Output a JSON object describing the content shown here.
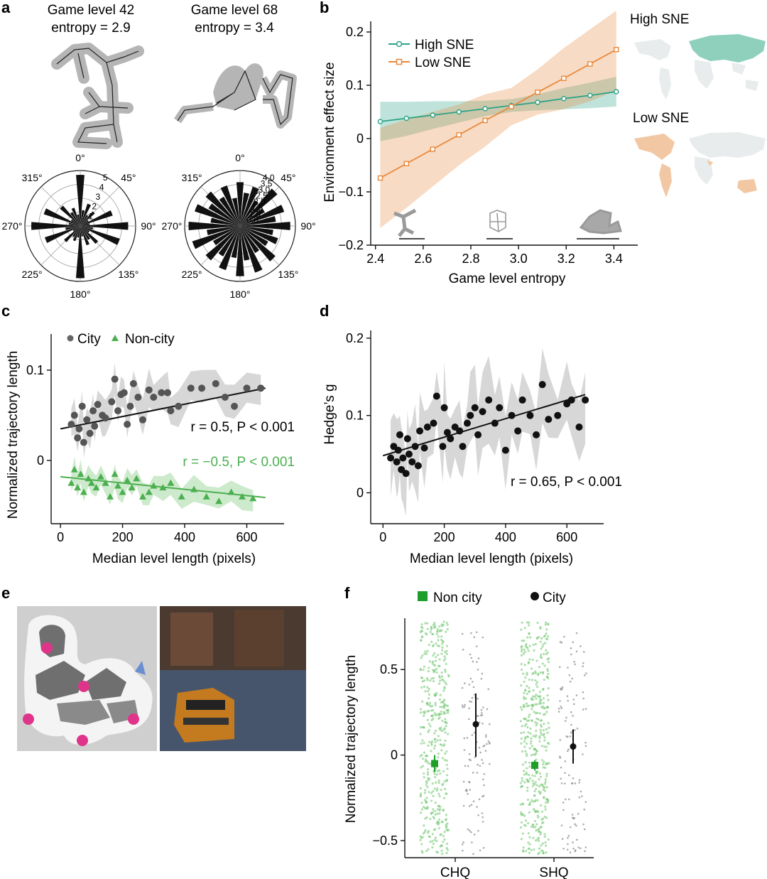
{
  "panel_labels": {
    "a": "a",
    "b": "b",
    "c": "c",
    "d": "d",
    "e": "e",
    "f": "f"
  },
  "colors": {
    "high_sne": "#2aa385",
    "low_sne": "#e8873a",
    "city": "#555555",
    "noncity": "#4caf50",
    "f_noncity": "#1f9e2a",
    "black": "#111111"
  },
  "panel_a": {
    "left": {
      "title1": "Game level 42",
      "title2": "entropy = 2.9",
      "radial_ticks": [
        "1",
        "2",
        "3",
        "4",
        "5"
      ],
      "bins": [
        4.8,
        1.5,
        2.2,
        1.2,
        1.8,
        0.9,
        3.2,
        0.9,
        4.5,
        1.2,
        3.9,
        1.0,
        2.2,
        1.5,
        1.9,
        1.0,
        4.9,
        1.1,
        1.5,
        1.2,
        2.0,
        0.8,
        3.5,
        1.4,
        4.6,
        1.1,
        3.6,
        1.0,
        2.5,
        1.5,
        1.8,
        1.1
      ]
    },
    "right": {
      "title1": "Game level 68",
      "title2": "entropy = 3.4",
      "radial_ticks": [
        "0.5",
        "1.0",
        "1.5",
        "2.0",
        "2.5",
        "3.0",
        "3.5",
        "4.0"
      ],
      "bins": [
        3.4,
        2.6,
        3.2,
        2.3,
        3.8,
        2.2,
        3.6,
        2.8,
        3.9,
        2.6,
        3.1,
        2.5,
        3.6,
        2.4,
        3.8,
        2.7,
        3.9,
        2.5,
        3.6,
        2.7,
        3.5,
        2.4,
        3.9,
        2.6,
        4.0,
        2.3,
        3.7,
        2.8,
        3.5,
        2.6,
        3.3,
        2.2
      ]
    },
    "angle_labels": [
      "0°",
      "45°",
      "90°",
      "135°",
      "180°",
      "225°",
      "270°",
      "315°"
    ]
  },
  "panel_b": {
    "legend": [
      "High SNE",
      "Low SNE"
    ],
    "map_labels": [
      "High SNE",
      "Low SNE"
    ],
    "chart_data": {
      "type": "line",
      "title": "",
      "xlabel": "Game level entropy",
      "ylabel": "Environment effect size",
      "xlim": [
        2.38,
        3.5
      ],
      "ylim": [
        -0.2,
        0.22
      ],
      "xticks": [
        "2.4",
        "2.6",
        "2.8",
        "3.0",
        "3.2",
        "3.4"
      ],
      "yticks": [
        "−0.2",
        "−0.1",
        "0",
        "0.1",
        "0.2"
      ],
      "x": [
        2.42,
        2.53,
        2.64,
        2.75,
        2.86,
        2.97,
        3.08,
        3.19,
        3.3,
        3.41
      ],
      "series": [
        {
          "name": "High SNE",
          "values": [
            0.032,
            0.038,
            0.044,
            0.05,
            0.056,
            0.062,
            0.068,
            0.075,
            0.081,
            0.088
          ],
          "ci_low": [
            -0.005,
            0.005,
            0.018,
            0.03,
            0.042,
            0.05,
            0.053,
            0.055,
            0.057,
            0.06
          ],
          "ci_high": [
            0.069,
            0.069,
            0.07,
            0.07,
            0.071,
            0.074,
            0.083,
            0.095,
            0.105,
            0.116
          ]
        },
        {
          "name": "Low SNE",
          "values": [
            -0.074,
            -0.047,
            -0.02,
            0.007,
            0.034,
            0.06,
            0.087,
            0.113,
            0.14,
            0.167
          ],
          "ci_low": [
            -0.168,
            -0.13,
            -0.09,
            -0.05,
            -0.015,
            0.025,
            0.045,
            0.055,
            0.07,
            0.09
          ],
          "ci_high": [
            0.02,
            0.036,
            0.05,
            0.064,
            0.083,
            0.095,
            0.13,
            0.17,
            0.205,
            0.24
          ]
        }
      ]
    }
  },
  "panel_c": {
    "legend": [
      "City",
      "Non-city"
    ],
    "stat_city": "r = 0.5, P < 0.001",
    "stat_noncity": "r = −0.5, P < 0.001",
    "chart_data": {
      "type": "scatter",
      "xlabel": "Median level length (pixels)",
      "ylabel": "Normalized trajectory length",
      "xlim": [
        -30,
        720
      ],
      "ylim": [
        -0.07,
        0.14
      ],
      "xticks": [
        "0",
        "200",
        "400",
        "600"
      ],
      "yticks": [
        "0",
        "0.1"
      ],
      "fit_city": {
        "x": [
          0,
          660
        ],
        "y": [
          0.035,
          0.08
        ]
      },
      "fit_noncity": {
        "x": [
          0,
          660
        ],
        "y": [
          -0.018,
          -0.041
        ]
      },
      "city": [
        [
          35,
          0.04
        ],
        [
          45,
          0.05
        ],
        [
          55,
          0.025
        ],
        [
          60,
          0.035
        ],
        [
          70,
          0.06
        ],
        [
          75,
          0.02
        ],
        [
          85,
          0.045
        ],
        [
          95,
          0.03
        ],
        [
          105,
          0.055
        ],
        [
          110,
          0.038
        ],
        [
          120,
          0.062
        ],
        [
          135,
          0.05
        ],
        [
          145,
          0.047
        ],
        [
          165,
          0.065
        ],
        [
          175,
          0.09
        ],
        [
          185,
          0.055
        ],
        [
          195,
          0.073
        ],
        [
          205,
          0.075
        ],
        [
          215,
          0.04
        ],
        [
          225,
          0.06
        ],
        [
          235,
          0.085
        ],
        [
          250,
          0.07
        ],
        [
          265,
          0.045
        ],
        [
          285,
          0.078
        ],
        [
          300,
          0.07
        ],
        [
          325,
          0.075
        ],
        [
          345,
          0.075
        ],
        [
          355,
          0.055
        ],
        [
          380,
          0.06
        ],
        [
          420,
          0.08
        ],
        [
          455,
          0.08
        ],
        [
          500,
          0.085
        ],
        [
          530,
          0.07
        ],
        [
          560,
          0.06
        ],
        [
          600,
          0.08
        ],
        [
          645,
          0.08
        ]
      ],
      "noncity": [
        [
          35,
          -0.025
        ],
        [
          45,
          -0.01
        ],
        [
          55,
          -0.03
        ],
        [
          65,
          -0.015
        ],
        [
          75,
          -0.035
        ],
        [
          90,
          -0.02
        ],
        [
          100,
          -0.025
        ],
        [
          115,
          -0.03
        ],
        [
          130,
          -0.018
        ],
        [
          145,
          -0.025
        ],
        [
          160,
          -0.04
        ],
        [
          175,
          -0.015
        ],
        [
          185,
          -0.028
        ],
        [
          200,
          -0.035
        ],
        [
          215,
          -0.022
        ],
        [
          230,
          -0.03
        ],
        [
          245,
          -0.02
        ],
        [
          265,
          -0.04
        ],
        [
          285,
          -0.035
        ],
        [
          300,
          -0.028
        ],
        [
          330,
          -0.03
        ],
        [
          355,
          -0.025
        ],
        [
          390,
          -0.04
        ],
        [
          430,
          -0.032
        ],
        [
          470,
          -0.04
        ],
        [
          510,
          -0.045
        ],
        [
          550,
          -0.035
        ],
        [
          585,
          -0.04
        ],
        [
          620,
          -0.042
        ]
      ]
    }
  },
  "panel_d": {
    "stat": "r = 0.65, P < 0.001",
    "chart_data": {
      "type": "scatter",
      "xlabel": "Median level length (pixels)",
      "ylabel": "Hedge’s g",
      "xlim": [
        -40,
        720
      ],
      "ylim": [
        -0.04,
        0.21
      ],
      "xticks": [
        "0",
        "200",
        "400",
        "600"
      ],
      "yticks": [
        "0",
        "0.1",
        "0.2"
      ],
      "fit": {
        "x": [
          0,
          660
        ],
        "y": [
          0.048,
          0.127
        ]
      },
      "points": [
        [
          25,
          0.045
        ],
        [
          35,
          0.06
        ],
        [
          45,
          0.04
        ],
        [
          50,
          0.055
        ],
        [
          55,
          0.075
        ],
        [
          60,
          0.03
        ],
        [
          65,
          0.045
        ],
        [
          75,
          0.025
        ],
        [
          80,
          0.07
        ],
        [
          85,
          0.05
        ],
        [
          95,
          0.04
        ],
        [
          105,
          0.06
        ],
        [
          115,
          0.035
        ],
        [
          120,
          0.08
        ],
        [
          135,
          0.058
        ],
        [
          145,
          0.085
        ],
        [
          165,
          0.09
        ],
        [
          175,
          0.125
        ],
        [
          195,
          0.06
        ],
        [
          200,
          0.11
        ],
        [
          210,
          0.078
        ],
        [
          220,
          0.07
        ],
        [
          235,
          0.085
        ],
        [
          250,
          0.08
        ],
        [
          260,
          0.06
        ],
        [
          275,
          0.09
        ],
        [
          285,
          0.1
        ],
        [
          300,
          0.11
        ],
        [
          310,
          0.075
        ],
        [
          325,
          0.105
        ],
        [
          345,
          0.12
        ],
        [
          365,
          0.09
        ],
        [
          380,
          0.11
        ],
        [
          400,
          0.055
        ],
        [
          420,
          0.1
        ],
        [
          440,
          0.08
        ],
        [
          455,
          0.12
        ],
        [
          480,
          0.1
        ],
        [
          500,
          0.075
        ],
        [
          520,
          0.14
        ],
        [
          540,
          0.095
        ],
        [
          570,
          0.1
        ],
        [
          600,
          0.115
        ],
        [
          615,
          0.12
        ],
        [
          640,
          0.085
        ],
        [
          660,
          0.12
        ]
      ]
    }
  },
  "panel_f": {
    "legend": [
      "Non city",
      "City"
    ],
    "chart_data": {
      "type": "scatter",
      "xlabel": "",
      "ylabel": "Normalized trajectory length",
      "ylim": [
        -0.6,
        0.8
      ],
      "yticks": [
        "−0.5",
        "0",
        "0.5"
      ],
      "categories": [
        "CHQ",
        "SHQ"
      ],
      "series": [
        {
          "name": "Non city",
          "means": [
            -0.05,
            -0.06
          ],
          "ci": [
            [
              -0.1,
              0.0
            ],
            [
              -0.09,
              -0.03
            ]
          ]
        },
        {
          "name": "City",
          "means": [
            0.18,
            0.05
          ],
          "ci": [
            [
              -0.01,
              0.36
            ],
            [
              -0.05,
              0.15
            ]
          ]
        }
      ]
    }
  }
}
